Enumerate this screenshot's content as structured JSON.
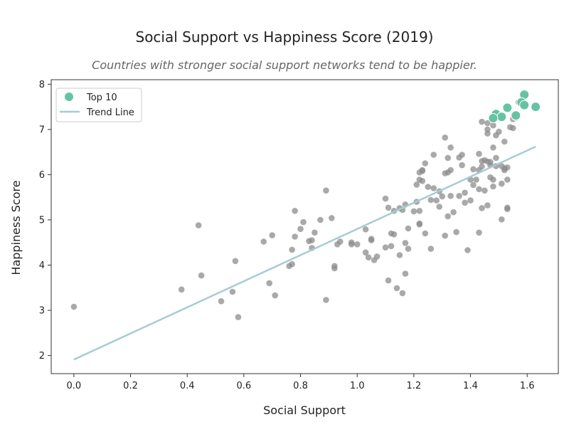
{
  "chart_data": {
    "type": "scatter",
    "title": "Social Support vs Happiness Score (2019)",
    "subtitle": "Countries with stronger social support networks tend to be happier.",
    "xlabel": "Social Support",
    "ylabel": "Happiness Score",
    "xlim": [
      -0.08,
      1.71
    ],
    "ylim": [
      1.6,
      8.1
    ],
    "x_ticks": [
      0.0,
      0.2,
      0.4,
      0.6,
      0.8,
      1.0,
      1.2,
      1.4,
      1.6
    ],
    "x_tick_labels": [
      "0.0",
      "0.2",
      "0.4",
      "0.6",
      "0.8",
      "1.0",
      "1.2",
      "1.4",
      "1.6"
    ],
    "y_ticks": [
      2,
      3,
      4,
      5,
      6,
      7,
      8
    ],
    "y_tick_labels": [
      "2",
      "3",
      "4",
      "5",
      "6",
      "7",
      "8"
    ],
    "grid": false,
    "legend_position": "top-left",
    "series": [
      {
        "name": "",
        "color": "#8c8c8c",
        "points": [
          [
            0.0,
            3.08
          ],
          [
            0.38,
            3.46
          ],
          [
            0.44,
            4.88
          ],
          [
            0.45,
            3.77
          ],
          [
            0.52,
            3.2
          ],
          [
            0.56,
            3.41
          ],
          [
            0.57,
            4.09
          ],
          [
            0.58,
            2.85
          ],
          [
            0.67,
            4.52
          ],
          [
            0.69,
            3.6
          ],
          [
            0.7,
            4.66
          ],
          [
            0.71,
            3.33
          ],
          [
            0.76,
            3.98
          ],
          [
            0.77,
            4.02
          ],
          [
            0.77,
            4.34
          ],
          [
            0.78,
            4.63
          ],
          [
            0.78,
            5.2
          ],
          [
            0.8,
            4.8
          ],
          [
            0.81,
            4.95
          ],
          [
            0.83,
            4.53
          ],
          [
            0.84,
            4.38
          ],
          [
            0.84,
            4.55
          ],
          [
            0.85,
            4.72
          ],
          [
            0.87,
            5.0
          ],
          [
            0.89,
            3.23
          ],
          [
            0.89,
            5.65
          ],
          [
            0.91,
            5.04
          ],
          [
            0.92,
            3.93
          ],
          [
            0.92,
            3.98
          ],
          [
            0.93,
            4.46
          ],
          [
            0.94,
            4.52
          ],
          [
            0.98,
            4.46
          ],
          [
            0.98,
            4.5
          ],
          [
            1.0,
            4.46
          ],
          [
            1.03,
            4.79
          ],
          [
            1.03,
            4.28
          ],
          [
            1.04,
            4.17
          ],
          [
            1.05,
            4.58
          ],
          [
            1.05,
            4.55
          ],
          [
            1.06,
            4.11
          ],
          [
            1.07,
            4.19
          ],
          [
            1.1,
            5.47
          ],
          [
            1.1,
            4.39
          ],
          [
            1.11,
            5.27
          ],
          [
            1.11,
            3.66
          ],
          [
            1.12,
            4.7
          ],
          [
            1.12,
            4.42
          ],
          [
            1.13,
            5.2
          ],
          [
            1.13,
            4.68
          ],
          [
            1.14,
            3.49
          ],
          [
            1.15,
            4.22
          ],
          [
            1.15,
            5.26
          ],
          [
            1.16,
            5.22
          ],
          [
            1.16,
            3.38
          ],
          [
            1.17,
            4.49
          ],
          [
            1.17,
            3.81
          ],
          [
            1.17,
            5.34
          ],
          [
            1.18,
            4.81
          ],
          [
            1.18,
            4.36
          ],
          [
            1.2,
            5.19
          ],
          [
            1.21,
            5.78
          ],
          [
            1.21,
            5.4
          ],
          [
            1.22,
            6.05
          ],
          [
            1.22,
            5.89
          ],
          [
            1.22,
            5.2
          ],
          [
            1.22,
            4.9
          ],
          [
            1.22,
            4.92
          ],
          [
            1.23,
            6.08
          ],
          [
            1.23,
            6.1
          ],
          [
            1.23,
            5.86
          ],
          [
            1.24,
            6.25
          ],
          [
            1.24,
            4.7
          ],
          [
            1.25,
            5.73
          ],
          [
            1.26,
            5.44
          ],
          [
            1.26,
            4.36
          ],
          [
            1.27,
            6.44
          ],
          [
            1.27,
            5.7
          ],
          [
            1.28,
            5.43
          ],
          [
            1.29,
            5.63
          ],
          [
            1.29,
            5.29
          ],
          [
            1.3,
            5.52
          ],
          [
            1.31,
            6.82
          ],
          [
            1.31,
            6.03
          ],
          [
            1.31,
            4.65
          ],
          [
            1.32,
            6.37
          ],
          [
            1.32,
            6.05
          ],
          [
            1.32,
            5.08
          ],
          [
            1.33,
            6.6
          ],
          [
            1.33,
            6.1
          ],
          [
            1.33,
            5.53
          ],
          [
            1.34,
            5.17
          ],
          [
            1.35,
            4.73
          ],
          [
            1.36,
            6.38
          ],
          [
            1.36,
            5.53
          ],
          [
            1.37,
            6.21
          ],
          [
            1.37,
            6.44
          ],
          [
            1.38,
            5.38
          ],
          [
            1.38,
            5.6
          ],
          [
            1.39,
            4.33
          ],
          [
            1.4,
            5.89
          ],
          [
            1.4,
            5.43
          ],
          [
            1.41,
            6.12
          ],
          [
            1.41,
            5.77
          ],
          [
            1.42,
            5.89
          ],
          [
            1.43,
            6.46
          ],
          [
            1.43,
            6.1
          ],
          [
            1.43,
            4.72
          ],
          [
            1.43,
            5.68
          ],
          [
            1.44,
            7.17
          ],
          [
            1.44,
            6.3
          ],
          [
            1.44,
            6.18
          ],
          [
            1.44,
            5.26
          ],
          [
            1.45,
            5.65
          ],
          [
            1.45,
            6.32
          ],
          [
            1.46,
            7.14
          ],
          [
            1.46,
            7.0
          ],
          [
            1.46,
            6.91
          ],
          [
            1.46,
            6.29
          ],
          [
            1.46,
            5.32
          ],
          [
            1.47,
            6.28
          ],
          [
            1.47,
            6.21
          ],
          [
            1.47,
            5.94
          ],
          [
            1.48,
            6.6
          ],
          [
            1.48,
            5.89
          ],
          [
            1.48,
            5.74
          ],
          [
            1.48,
            7.09
          ],
          [
            1.49,
            7.32
          ],
          [
            1.49,
            6.37
          ],
          [
            1.49,
            6.19
          ],
          [
            1.49,
            6.87
          ],
          [
            1.5,
            6.95
          ],
          [
            1.51,
            6.19
          ],
          [
            1.51,
            5.8
          ],
          [
            1.51,
            5.01
          ],
          [
            1.52,
            6.73
          ],
          [
            1.52,
            6.14
          ],
          [
            1.52,
            6.1
          ],
          [
            1.53,
            5.89
          ],
          [
            1.53,
            6.16
          ],
          [
            1.53,
            5.27
          ],
          [
            1.53,
            5.24
          ],
          [
            1.54,
            7.05
          ],
          [
            1.55,
            7.23
          ],
          [
            1.55,
            7.03
          ],
          [
            1.56,
            7.25
          ],
          [
            1.57,
            7.6
          ]
        ]
      },
      {
        "name": "Top 10",
        "color": "#66c2a5",
        "points": [
          [
            1.59,
            7.77
          ],
          [
            1.58,
            7.6
          ],
          [
            1.63,
            7.5
          ],
          [
            1.53,
            7.48
          ],
          [
            1.49,
            7.34
          ],
          [
            1.51,
            7.28
          ],
          [
            1.48,
            7.25
          ],
          [
            1.56,
            7.3
          ],
          [
            1.59,
            7.54
          ],
          [
            1.56,
            7.31
          ]
        ]
      }
    ],
    "trend_line": {
      "name": "Trend Line",
      "color": "#a5cdd2",
      "points": [
        [
          0.0,
          1.91
        ],
        [
          1.63,
          6.62
        ]
      ]
    }
  }
}
